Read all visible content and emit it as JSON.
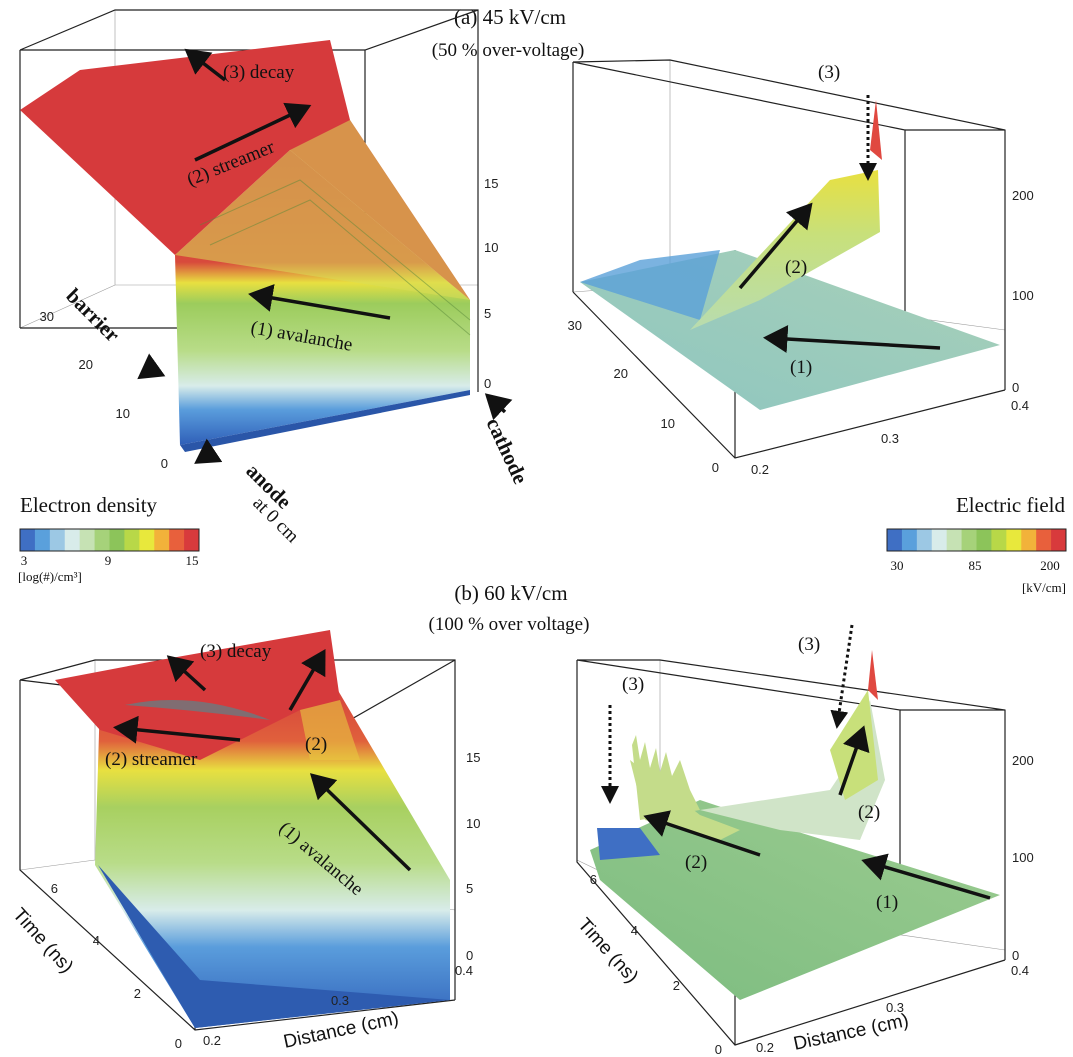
{
  "panel_a": {
    "title": "(a) 45 kV/cm",
    "subtitle": "(50 % over-voltage)",
    "density_labels": {
      "decay": "(3) decay",
      "streamer": "(2) streamer",
      "avalanche": "(1) avalanche",
      "barrier": "barrier",
      "anode": "anode",
      "anode_sub": "at 0 cm",
      "cathode": "cathode"
    },
    "field_labels": {
      "l3": "(3)",
      "l2": "(2)",
      "l1": "(1)"
    },
    "density_z_ticks": [
      "0",
      "5",
      "10",
      "15"
    ],
    "time_ticks": [
      "0",
      "10",
      "20",
      "30"
    ],
    "field_z_ticks": [
      "0",
      "100",
      "200"
    ],
    "field_time_ticks": [
      "0",
      "10",
      "20",
      "30"
    ],
    "field_x_ticks": [
      "0.2",
      "0.3",
      "0.4"
    ]
  },
  "panel_b": {
    "title": "(b) 60 kV/cm",
    "subtitle": "(100 % over voltage)",
    "density_labels": {
      "decay": "(3) decay",
      "streamer": "(2) streamer",
      "l2": "(2)",
      "avalanche": "(1) avalanche"
    },
    "field_labels": {
      "l3a": "(3)",
      "l3b": "(3)",
      "l2a": "(2)",
      "l2b": "(2)",
      "l1": "(1)"
    },
    "density_z_ticks": [
      "0",
      "5",
      "10",
      "15"
    ],
    "time_ticks": [
      "0",
      "2",
      "4",
      "6"
    ],
    "x_ticks": [
      "0.2",
      "0.3",
      "0.4"
    ],
    "field_z_ticks": [
      "0",
      "100",
      "200"
    ],
    "field_time_ticks": [
      "0",
      "2",
      "4",
      "6"
    ],
    "field_x_ticks": [
      "0.2",
      "0.3",
      "0.4"
    ],
    "ylabel": "Time (ns)",
    "xlabel": "Distance (cm)"
  },
  "colorbar_density": {
    "label": "Electron density",
    "ticks": [
      "3",
      "9",
      "15"
    ],
    "unit": "[log(#)/cm³]",
    "colors": [
      "#3f6fc4",
      "#5aa0dc",
      "#9cc8e4",
      "#d8ecea",
      "#c6e2b4",
      "#a6d27a",
      "#8cc45a",
      "#b8d848",
      "#e8e83c",
      "#f2b23a",
      "#e8603c",
      "#d83a3c"
    ]
  },
  "colorbar_field": {
    "label": "Electric field",
    "ticks": [
      "30",
      "85",
      "200"
    ],
    "unit": "[kV/cm]",
    "colors": [
      "#3f6fc4",
      "#5aa0dc",
      "#9cc8e4",
      "#d8ecea",
      "#c6e2b4",
      "#a6d27a",
      "#8cc45a",
      "#b8d848",
      "#e8e83c",
      "#f2b23a",
      "#e8603c",
      "#d83a3c"
    ]
  }
}
